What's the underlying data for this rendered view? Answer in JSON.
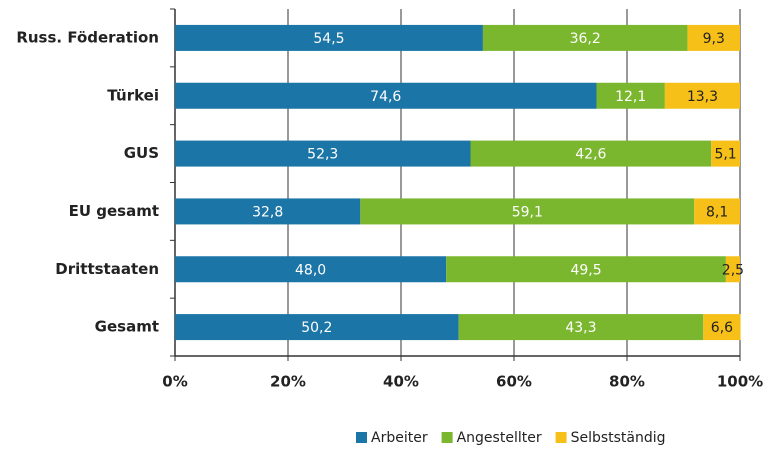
{
  "chart_data": {
    "type": "stacked-bar-horizontal",
    "categories": [
      "Russ. Föderation",
      "Türkei",
      "GUS",
      "EU gesamt",
      "Drittstaaten",
      "Gesamt"
    ],
    "series": [
      {
        "name": "Arbeiter",
        "color": "#1b75a6",
        "values": [
          54.5,
          74.6,
          52.3,
          32.8,
          48,
          50.2
        ],
        "value_labels": [
          "54,5",
          "74,6",
          "52,3",
          "32,8",
          "48,0",
          "50,2"
        ]
      },
      {
        "name": "Angestellter",
        "color": "#7ab72e",
        "values": [
          36.2,
          12.1,
          42.6,
          59.1,
          49.5,
          43.3
        ],
        "value_labels": [
          "36,2",
          "12,1",
          "42,6",
          "59,1",
          "49,5",
          "43,3"
        ]
      },
      {
        "name": "Selbstständig",
        "color": "#f6c018",
        "values": [
          9.3,
          13.3,
          5.1,
          8.1,
          2.5,
          6.6
        ],
        "value_labels": [
          "9,3",
          "13,3",
          "5,1",
          "8,1",
          "2,5",
          "6,6"
        ]
      }
    ],
    "xlim": [
      0,
      100
    ],
    "xticks": [
      {
        "value": 0,
        "label": "0%"
      },
      {
        "value": 20,
        "label": "20%"
      },
      {
        "value": 40,
        "label": "40%"
      },
      {
        "value": 60,
        "label": "60%"
      },
      {
        "value": 80,
        "label": "80%"
      },
      {
        "value": 100,
        "label": "100%"
      }
    ],
    "grid": true
  }
}
